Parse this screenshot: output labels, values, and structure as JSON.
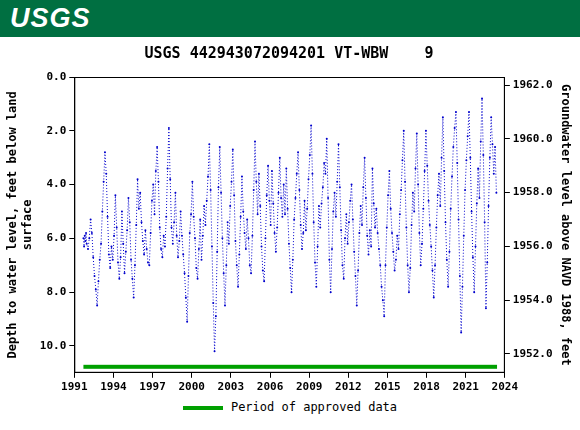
{
  "header": {
    "logo": "USGS"
  },
  "chart_data": {
    "type": "line",
    "title": "USGS 442943072094201 VT-WBW    9",
    "ylabel": [
      "Depth to water level, feet below land",
      "surface"
    ],
    "y2label": "Groundwater level above NAVD 1988, feet",
    "color": "#0000cc",
    "marker": "circle",
    "line_style": "dotted",
    "grid": false,
    "xlim": [
      1991,
      2024
    ],
    "xticks": [
      1991,
      1994,
      1997,
      2000,
      2003,
      2006,
      2009,
      2012,
      2015,
      2018,
      2021,
      2024
    ],
    "ylim": [
      0,
      11
    ],
    "yticks": [
      {
        "value": 0,
        "label": "0.0"
      },
      {
        "value": 2,
        "label": "2.0"
      },
      {
        "value": 4,
        "label": "4.0"
      },
      {
        "value": 6,
        "label": "6.0"
      },
      {
        "value": 8,
        "label": "8.0"
      },
      {
        "value": 10,
        "label": "10.0"
      }
    ],
    "y2lim": [
      1951.3,
      1962.3
    ],
    "y2ticks": [
      {
        "value": 1952,
        "label": "1952.0"
      },
      {
        "value": 1954,
        "label": "1954.0"
      },
      {
        "value": 1956,
        "label": "1956.0"
      },
      {
        "value": 1958,
        "label": "1958.0"
      },
      {
        "value": 1960,
        "label": "1960.0"
      },
      {
        "value": 1962,
        "label": "1962.0"
      }
    ],
    "approved_period": {
      "name": "Period of approved data",
      "color": "#00a000",
      "x": [
        1991.7,
        2023.4
      ]
    },
    "x": [
      1991.7,
      1991.75,
      1991.8,
      1991.85,
      1991.9,
      1991.95,
      1992.05,
      1992.15,
      1992.25,
      1992.35,
      1992.45,
      1992.55,
      1992.65,
      1992.75,
      1992.85,
      1992.95,
      1993.05,
      1993.15,
      1993.25,
      1993.35,
      1993.45,
      1993.55,
      1993.65,
      1993.75,
      1993.85,
      1993.95,
      1994.05,
      1994.15,
      1994.25,
      1994.35,
      1994.45,
      1994.55,
      1994.65,
      1994.75,
      1994.85,
      1994.95,
      1995.05,
      1995.15,
      1995.25,
      1995.35,
      1995.45,
      1995.55,
      1995.65,
      1995.75,
      1995.85,
      1995.95,
      1996.05,
      1996.15,
      1996.25,
      1996.35,
      1996.45,
      1996.55,
      1996.65,
      1996.75,
      1996.85,
      1996.95,
      1997.05,
      1997.15,
      1997.25,
      1997.35,
      1997.45,
      1997.55,
      1997.65,
      1997.75,
      1997.85,
      1997.95,
      1998.05,
      1998.15,
      1998.25,
      1998.35,
      1998.45,
      1998.55,
      1998.65,
      1998.75,
      1998.85,
      1998.95,
      1999.05,
      1999.15,
      1999.25,
      1999.35,
      1999.45,
      1999.55,
      1999.65,
      1999.75,
      1999.85,
      1999.95,
      2000.05,
      2000.15,
      2000.25,
      2000.35,
      2000.45,
      2000.55,
      2000.65,
      2000.75,
      2000.85,
      2000.95,
      2001.05,
      2001.15,
      2001.25,
      2001.35,
      2001.45,
      2001.55,
      2001.65,
      2001.75,
      2001.85,
      2001.95,
      2002.05,
      2002.15,
      2002.25,
      2002.35,
      2002.45,
      2002.55,
      2002.65,
      2002.75,
      2002.85,
      2002.95,
      2003.05,
      2003.15,
      2003.25,
      2003.35,
      2003.45,
      2003.55,
      2003.65,
      2003.75,
      2003.85,
      2003.95,
      2004.05,
      2004.15,
      2004.25,
      2004.35,
      2004.45,
      2004.55,
      2004.65,
      2004.75,
      2004.85,
      2004.95,
      2005.05,
      2005.15,
      2005.25,
      2005.35,
      2005.45,
      2005.55,
      2005.65,
      2005.75,
      2005.85,
      2005.95,
      2006.05,
      2006.15,
      2006.25,
      2006.35,
      2006.45,
      2006.55,
      2006.65,
      2006.75,
      2006.85,
      2006.95,
      2007.05,
      2007.15,
      2007.25,
      2007.35,
      2007.45,
      2007.55,
      2007.65,
      2007.75,
      2007.85,
      2007.95,
      2008.05,
      2008.15,
      2008.25,
      2008.35,
      2008.45,
      2008.55,
      2008.65,
      2008.75,
      2008.85,
      2008.95,
      2009.05,
      2009.15,
      2009.25,
      2009.35,
      2009.45,
      2009.55,
      2009.65,
      2009.75,
      2009.85,
      2009.95,
      2010.05,
      2010.15,
      2010.25,
      2010.35,
      2010.45,
      2010.55,
      2010.65,
      2010.75,
      2010.85,
      2010.95,
      2011.05,
      2011.15,
      2011.25,
      2011.35,
      2011.45,
      2011.55,
      2011.65,
      2011.75,
      2011.85,
      2011.95,
      2012.05,
      2012.15,
      2012.25,
      2012.35,
      2012.45,
      2012.55,
      2012.65,
      2012.75,
      2012.85,
      2012.95,
      2013.05,
      2013.15,
      2013.25,
      2013.35,
      2013.45,
      2013.55,
      2013.65,
      2013.75,
      2013.85,
      2013.95,
      2014.05,
      2014.15,
      2014.25,
      2014.35,
      2014.45,
      2014.55,
      2014.65,
      2014.75,
      2014.85,
      2014.95,
      2015.05,
      2015.15,
      2015.25,
      2015.35,
      2015.45,
      2015.55,
      2015.65,
      2015.75,
      2015.85,
      2015.95,
      2016.05,
      2016.15,
      2016.25,
      2016.35,
      2016.45,
      2016.55,
      2016.65,
      2016.75,
      2016.85,
      2016.95,
      2017.05,
      2017.15,
      2017.25,
      2017.35,
      2017.45,
      2017.55,
      2017.65,
      2017.75,
      2017.85,
      2017.95,
      2018.05,
      2018.15,
      2018.25,
      2018.35,
      2018.45,
      2018.55,
      2018.65,
      2018.75,
      2018.85,
      2018.95,
      2019.05,
      2019.15,
      2019.25,
      2019.35,
      2019.45,
      2019.55,
      2019.65,
      2019.75,
      2019.85,
      2019.95,
      2020.05,
      2020.15,
      2020.25,
      2020.35,
      2020.45,
      2020.55,
      2020.65,
      2020.75,
      2020.85,
      2020.95,
      2021.05,
      2021.15,
      2021.25,
      2021.35,
      2021.45,
      2021.55,
      2021.65,
      2021.75,
      2021.85,
      2021.95,
      2022.05,
      2022.15,
      2022.25,
      2022.35,
      2022.45,
      2022.55,
      2022.65,
      2022.75,
      2022.85,
      2022.95,
      2023.05,
      2023.15,
      2023.25,
      2023.35
    ],
    "values": [
      6.0,
      6.3,
      5.9,
      6.1,
      5.8,
      6.2,
      6.4,
      6.0,
      5.3,
      5.8,
      6.7,
      7.4,
      7.9,
      8.5,
      7.6,
      6.8,
      6.2,
      5.0,
      3.9,
      2.8,
      3.6,
      5.2,
      6.6,
      7.1,
      6.3,
      6.8,
      5.9,
      4.4,
      5.6,
      6.9,
      7.5,
      6.7,
      5.0,
      6.2,
      7.3,
      6.5,
      5.7,
      4.5,
      5.4,
      6.8,
      7.5,
      8.2,
      7.0,
      5.5,
      3.8,
      4.9,
      4.3,
      5.4,
      6.1,
      6.6,
      5.7,
      6.4,
      6.9,
      7.0,
      5.8,
      4.6,
      4.0,
      5.1,
      3.5,
      2.6,
      3.9,
      5.6,
      6.4,
      6.7,
      5.9,
      6.3,
      5.2,
      3.4,
      1.9,
      3.8,
      5.6,
      6.2,
      5.4,
      4.3,
      5.9,
      6.7,
      6.1,
      5.0,
      5.9,
      6.6,
      7.3,
      8.2,
      9.1,
      7.4,
      5.8,
      5.1,
      3.9,
      5.2,
      6.0,
      7.1,
      7.5,
      6.4,
      5.3,
      6.8,
      5.9,
      4.8,
      5.5,
      4.6,
      3.7,
      2.5,
      4.2,
      6.3,
      8.4,
      10.2,
      8.9,
      6.5,
      4.1,
      2.6,
      4.3,
      6.0,
      7.3,
      8.5,
      7.0,
      5.4,
      6.2,
      4.8,
      3.9,
      2.7,
      4.4,
      6.1,
      7.0,
      7.8,
      6.6,
      5.2,
      3.7,
      5.0,
      5.8,
      6.4,
      5.3,
      6.0,
      7.0,
      7.3,
      5.9,
      4.2,
      2.4,
      3.9,
      5.1,
      3.6,
      4.8,
      6.3,
      7.2,
      7.6,
      6.0,
      4.4,
      3.3,
      4.6,
      5.5,
      3.5,
      4.7,
      5.8,
      6.5,
      5.6,
      4.3,
      3.0,
      4.5,
      5.2,
      4.0,
      5.1,
      3.4,
      4.9,
      6.2,
      7.1,
      8.0,
      6.8,
      5.3,
      4.5,
      3.6,
      2.8,
      4.2,
      5.5,
      6.4,
      5.8,
      4.6,
      5.7,
      4.9,
      3.8,
      2.9,
      1.8,
      3.6,
      5.4,
      6.9,
      7.8,
      6.3,
      4.8,
      5.6,
      4.7,
      4.1,
      3.2,
      3.6,
      2.3,
      4.5,
      6.8,
      8.0,
      6.4,
      5.0,
      4.3,
      5.2,
      3.9,
      2.5,
      4.1,
      5.7,
      7.0,
      7.5,
      6.0,
      5.1,
      6.2,
      5.4,
      4.6,
      4.0,
      5.3,
      6.5,
      7.4,
      8.5,
      7.2,
      5.8,
      4.8,
      5.5,
      4.1,
      3.0,
      4.5,
      5.9,
      6.6,
      5.7,
      6.3,
      3.4,
      4.7,
      5.6,
      4.9,
      5.8,
      6.4,
      7.0,
      7.8,
      8.3,
      8.9,
      7.0,
      5.6,
      4.4,
      3.5,
      4.9,
      5.8,
      6.5,
      7.2,
      6.8,
      5.9,
      6.4,
      5.1,
      4.2,
      3.1,
      2.0,
      3.9,
      5.6,
      7.0,
      8.0,
      7.1,
      5.5,
      4.3,
      5.0,
      3.4,
      2.1,
      4.0,
      5.8,
      7.0,
      6.2,
      4.9,
      3.5,
      2.0,
      3.3,
      4.6,
      5.5,
      6.3,
      7.2,
      8.2,
      7.0,
      5.6,
      4.4,
      3.6,
      4.8,
      3.0,
      1.5,
      3.5,
      5.4,
      6.8,
      7.8,
      6.5,
      4.9,
      3.7,
      2.6,
      1.9,
      1.3,
      3.2,
      5.3,
      7.4,
      9.5,
      7.8,
      5.9,
      4.2,
      3.1,
      2.2,
      1.3,
      3.0,
      5.0,
      6.7,
      8.0,
      6.3,
      4.7,
      3.4,
      4.5,
      2.4,
      0.8,
      2.9,
      5.4,
      8.6,
      6.9,
      4.8,
      3.0,
      1.5,
      2.5,
      3.6,
      2.6,
      4.3
    ]
  }
}
